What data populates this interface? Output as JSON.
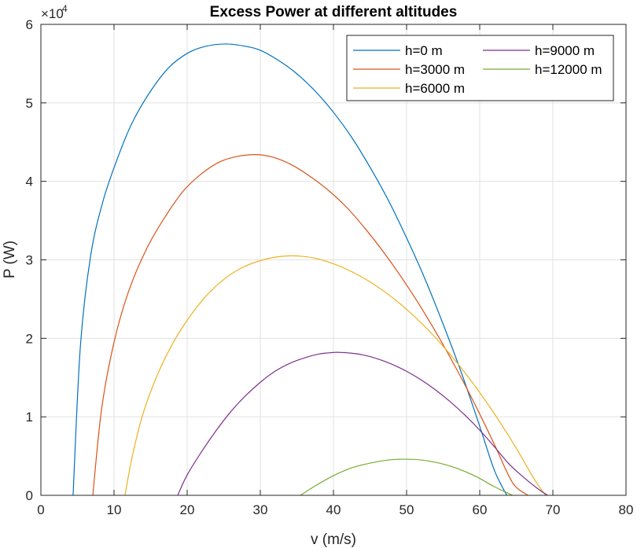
{
  "chart_data": {
    "type": "line",
    "title": "Excess Power at different altitudes",
    "xlabel": "v (m/s)",
    "ylabel": "P (W)",
    "xlim": [
      0,
      80
    ],
    "ylim": [
      0,
      60000
    ],
    "x_ticks": [
      0,
      10,
      20,
      30,
      40,
      50,
      60,
      70,
      80
    ],
    "x_tick_labels": [
      "0",
      "10",
      "20",
      "30",
      "40",
      "50",
      "60",
      "70",
      "80"
    ],
    "y_ticks": [
      0,
      10000,
      20000,
      30000,
      40000,
      50000,
      60000
    ],
    "y_tick_labels": [
      "0",
      "1",
      "2",
      "3",
      "4",
      "5",
      "6"
    ],
    "y_exponent": {
      "base": "×10",
      "power": "4"
    },
    "grid": true,
    "legend_position": "top-right",
    "legend_columns": 2,
    "series": [
      {
        "name": "h=0 m",
        "color": "#0072BD",
        "x": [
          4.4,
          5.4,
          6.8,
          8.5,
          10.5,
          12.5,
          15,
          17.5,
          20,
          22.5,
          25.3,
          28,
          30,
          32.5,
          35,
          37.5,
          40,
          42.5,
          45,
          47.5,
          50,
          52.5,
          55,
          57.5,
          60,
          62,
          63.7
        ],
        "y": [
          0,
          19000,
          30500,
          37500,
          43000,
          47500,
          51500,
          54500,
          56300,
          57200,
          57500,
          57200,
          56700,
          55400,
          53700,
          51500,
          48800,
          45600,
          41800,
          37600,
          32800,
          27600,
          21800,
          15600,
          8800,
          3200,
          0
        ]
      },
      {
        "name": "h=3000 m",
        "color": "#D95319",
        "x": [
          7.1,
          8.3,
          10,
          12,
          14.5,
          17,
          19.5,
          22,
          24.5,
          27,
          29.7,
          32,
          34.5,
          37,
          39.5,
          42,
          44.5,
          47,
          49.5,
          52,
          54.5,
          57,
          59.5,
          62,
          64.5,
          66.6
        ],
        "y": [
          0,
          11000,
          19500,
          26000,
          31500,
          35500,
          38800,
          41000,
          42500,
          43200,
          43400,
          43000,
          42000,
          40500,
          38700,
          36500,
          33800,
          30800,
          27500,
          23900,
          20000,
          15800,
          11300,
          6500,
          1600,
          0
        ]
      },
      {
        "name": "h=6000 m",
        "color": "#EDB120",
        "x": [
          11.5,
          12.5,
          14,
          16,
          18,
          20,
          22.5,
          25,
          27.5,
          30,
          32.5,
          35,
          37.5,
          40,
          42.5,
          45,
          47.5,
          50,
          52.5,
          55,
          57.5,
          60,
          62.5,
          65,
          67.5,
          69
        ],
        "y": [
          0,
          5000,
          10500,
          15500,
          19300,
          22300,
          25300,
          27500,
          29000,
          29900,
          30400,
          30500,
          30200,
          29500,
          28500,
          27200,
          25600,
          23700,
          21500,
          19000,
          16200,
          13100,
          9700,
          6000,
          2000,
          0
        ]
      },
      {
        "name": "h=9000 m",
        "color": "#7E2F8E",
        "x": [
          18.7,
          20,
          22,
          24,
          26,
          28,
          30,
          32,
          34,
          36,
          38,
          40,
          41.1,
          42,
          44,
          46,
          48,
          50,
          52,
          54,
          56,
          58,
          60,
          62,
          64,
          66,
          68,
          69.3
        ],
        "y": [
          0,
          2600,
          5600,
          8300,
          10700,
          12700,
          14400,
          15800,
          16800,
          17500,
          18000,
          18200,
          18200,
          18150,
          17900,
          17400,
          16700,
          15800,
          14700,
          13400,
          11900,
          10200,
          8300,
          6200,
          4000,
          2300,
          800,
          0
        ]
      },
      {
        "name": "h=12000 m",
        "color": "#77AC30",
        "x": [
          35.5,
          37.5,
          40,
          42.5,
          45,
          47.5,
          49.5,
          52,
          54.5,
          57,
          59.5,
          62,
          64.5
        ],
        "y": [
          0,
          1200,
          2500,
          3500,
          4100,
          4500,
          4600,
          4500,
          4100,
          3400,
          2400,
          1100,
          0
        ]
      }
    ]
  }
}
